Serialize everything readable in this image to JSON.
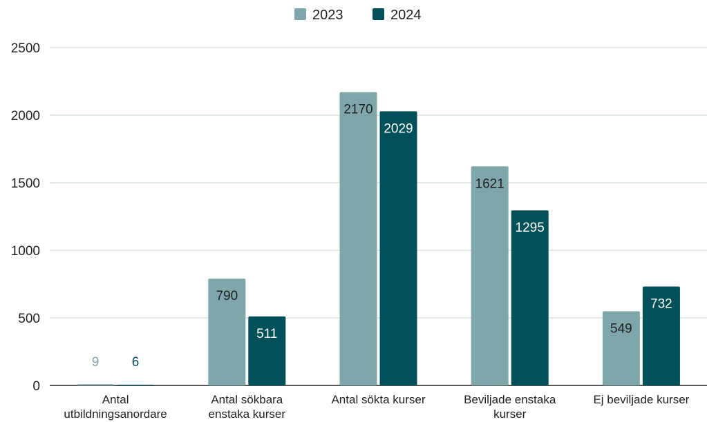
{
  "chart_data": {
    "type": "bar",
    "categories": [
      [
        "Antal",
        "utbildningsanordare"
      ],
      [
        "Antal sökbara",
        "enstaka kurser"
      ],
      [
        "Antal sökta kurser"
      ],
      [
        "Beviljade enstaka",
        "kurser"
      ],
      [
        "Ej beviljade kurser"
      ]
    ],
    "series": [
      {
        "name": "2023",
        "color": "#7fa7ab",
        "values": [
          9,
          790,
          2170,
          1621,
          549
        ]
      },
      {
        "name": "2024",
        "color": "#02505a",
        "values": [
          6,
          511,
          2029,
          1295,
          732
        ]
      }
    ],
    "ylim": [
      0,
      2500
    ],
    "yticks": [
      0,
      500,
      1000,
      1500,
      2000,
      2500
    ],
    "grid": true,
    "legend_position": "top-center",
    "title": "",
    "xlabel": "",
    "ylabel": ""
  }
}
